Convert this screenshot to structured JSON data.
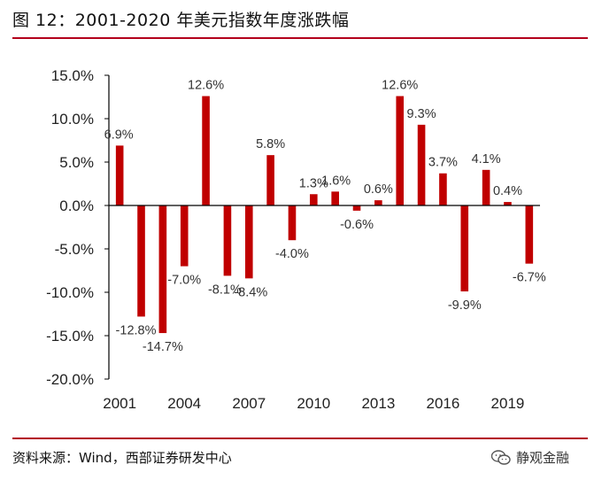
{
  "figure_title": "图 12：2001-2020 年美元指数年度涨跌幅",
  "source_note": "资料来源：Wind，西部证券研发中心",
  "brand": {
    "label": "静观金融",
    "icon": "wechat-icon"
  },
  "colors": {
    "bar": "#c00000",
    "rule": "#b3001b",
    "axis": "#000000"
  },
  "chart_data": {
    "type": "bar",
    "categories": [
      "2001",
      "2002",
      "2003",
      "2004",
      "2005",
      "2006",
      "2007",
      "2008",
      "2009",
      "2010",
      "2011",
      "2012",
      "2013",
      "2014",
      "2015",
      "2016",
      "2017",
      "2018",
      "2019",
      "2020"
    ],
    "values": [
      6.9,
      -12.8,
      -14.7,
      -7.0,
      12.6,
      -8.1,
      -8.4,
      5.8,
      -4.0,
      1.3,
      1.6,
      -0.6,
      0.6,
      12.6,
      9.3,
      3.7,
      -9.9,
      4.1,
      0.4,
      -6.7
    ],
    "data_labels": [
      "6.9%",
      "-12.8%",
      "-14.7%",
      "-7.0%",
      "12.6%",
      "-8.1%",
      "-8.4%",
      "5.8%",
      "-4.0%",
      "1.3%",
      "1.6%",
      "-0.6%",
      "0.6%",
      "12.6%",
      "9.3%",
      "3.7%",
      "-9.9%",
      "4.1%",
      "0.4%",
      "-6.7%"
    ],
    "x_tick_labels": [
      "2001",
      "2004",
      "2007",
      "2010",
      "2013",
      "2016",
      "2019"
    ],
    "x_tick_years": [
      "2001",
      "2004",
      "2007",
      "2010",
      "2013",
      "2016",
      "2019"
    ],
    "y_ticks": [
      15,
      10,
      5,
      0,
      -5,
      -10,
      -15,
      -20
    ],
    "y_tick_labels": [
      "15.0%",
      "10.0%",
      "5.0%",
      "0.0%",
      "-5.0%",
      "-10.0%",
      "-15.0%",
      "-20.0%"
    ],
    "ylim": [
      -20,
      15
    ],
    "title": "",
    "xlabel": "",
    "ylabel": "",
    "grid": false,
    "legend": false
  }
}
